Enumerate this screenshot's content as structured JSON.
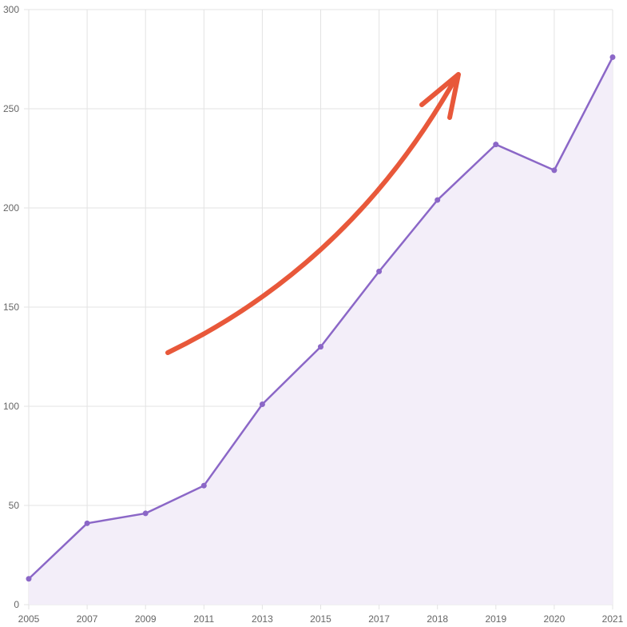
{
  "chart_data": {
    "type": "area",
    "title": "",
    "xlabel": "",
    "ylabel": "",
    "categories": [
      "2005",
      "2007",
      "2009",
      "2011",
      "2013",
      "2015",
      "2017",
      "2018",
      "2019",
      "2020",
      "2021"
    ],
    "series": [
      {
        "values": [
          13,
          41,
          46,
          60,
          101,
          130,
          168,
          204,
          232,
          219,
          276
        ]
      }
    ],
    "ylim": [
      0,
      300
    ],
    "yticks": [
      0,
      50,
      100,
      150,
      200,
      250,
      300
    ],
    "grid": true,
    "legend": "none",
    "colors": {
      "line": "#8b67c7",
      "fill": "#f3eef9",
      "point": "#8b67c7",
      "grid": "#e3e3e3",
      "tick_text": "#666666",
      "annotation_arrow": "#e8583a"
    },
    "annotation": {
      "type": "arrow",
      "icon": "trend-up-arrow-icon"
    }
  }
}
